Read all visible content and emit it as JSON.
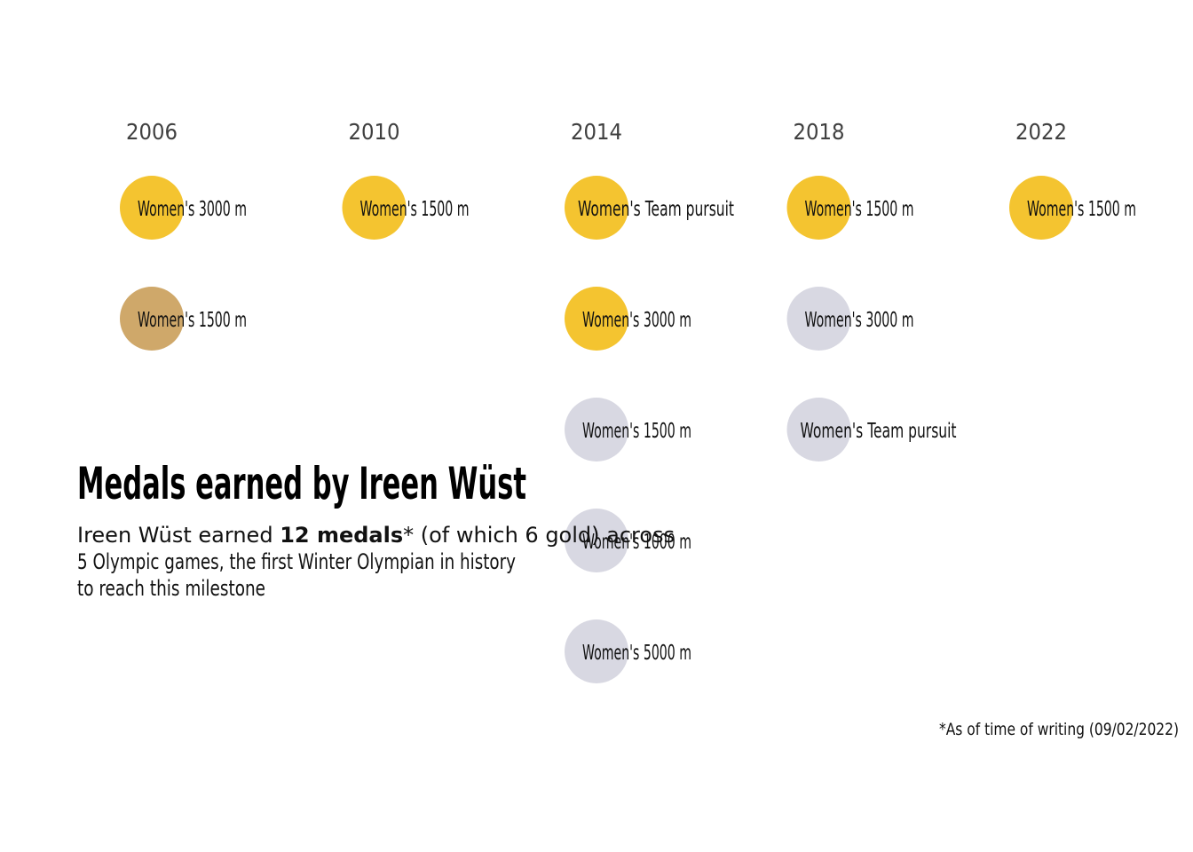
{
  "chart_data": {
    "type": "scatter",
    "title": "Medals earned by Ireen Wüst",
    "subtitle": {
      "before": "Ireen Wüst earned ",
      "bold": "12 medals",
      "after_line1": "* (of which 6 gold) across",
      "line2": "5 Olympic games, the first Winter Olympian in history",
      "line3": "to reach this milestone"
    },
    "footnote": "*As of time of writing (09/02/2022)",
    "colors": {
      "gold": "#F4C430",
      "silver": "#D8D8E2",
      "bronze": "#CFA86A"
    },
    "years": [
      "2006",
      "2010",
      "2014",
      "2018",
      "2022"
    ],
    "medals": [
      {
        "year": "2006",
        "rank": 1,
        "medal": "gold",
        "event": "Women's 3000 m"
      },
      {
        "year": "2006",
        "rank": 2,
        "medal": "bronze",
        "event": "Women's 1500 m"
      },
      {
        "year": "2010",
        "rank": 1,
        "medal": "gold",
        "event": "Women's 1500 m"
      },
      {
        "year": "2014",
        "rank": 1,
        "medal": "gold",
        "event": "Women's Team pursuit"
      },
      {
        "year": "2014",
        "rank": 2,
        "medal": "gold",
        "event": "Women's 3000 m"
      },
      {
        "year": "2014",
        "rank": 3,
        "medal": "silver",
        "event": "Women's 1500 m"
      },
      {
        "year": "2014",
        "rank": 4,
        "medal": "silver",
        "event": "Women's 1000 m"
      },
      {
        "year": "2014",
        "rank": 5,
        "medal": "silver",
        "event": "Women's 5000 m"
      },
      {
        "year": "2018",
        "rank": 1,
        "medal": "gold",
        "event": "Women's 1500 m"
      },
      {
        "year": "2018",
        "rank": 2,
        "medal": "silver",
        "event": "Women's 3000 m"
      },
      {
        "year": "2018",
        "rank": 3,
        "medal": "silver",
        "event": "Women's Team pursuit"
      },
      {
        "year": "2022",
        "rank": 1,
        "medal": "gold",
        "event": "Women's 1500 m"
      }
    ]
  }
}
